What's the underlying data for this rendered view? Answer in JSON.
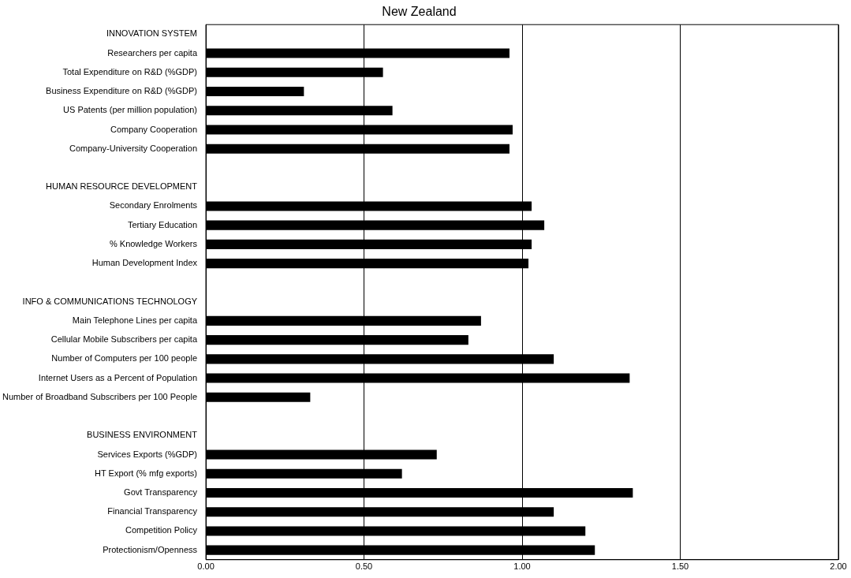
{
  "chart_data": {
    "type": "bar",
    "orientation": "horizontal",
    "title": "New Zealand",
    "categories": [
      "INNOVATION SYSTEM",
      "Researchers per capita",
      "Total Expenditure on R&D (%GDP)",
      "Business Expenditure on R&D (%GDP)",
      "US Patents (per million population)",
      "Company Cooperation",
      "Company-University Cooperation",
      null,
      "HUMAN RESOURCE DEVELOPMENT",
      "Secondary Enrolments",
      "Tertiary Education",
      "% Knowledge Workers",
      "Human Development Index",
      null,
      "INFO & COMMUNICATIONS TECHNOLOGY",
      "Main Telephone Lines per capita",
      "Cellular Mobile Subscribers per capita",
      "Number of Computers per 100 people",
      "Internet Users as a Percent of Population",
      "Number of Broadband Subscribers per 100 People",
      null,
      "BUSINESS ENVIRONMENT",
      "Services Exports (%GDP)",
      "HT Export (% mfg exports)",
      "Govt Transparency",
      "Financial Transparency",
      "Competition Policy",
      "Protectionism/Openness"
    ],
    "values": [
      null,
      0.96,
      0.56,
      0.31,
      0.59,
      0.97,
      0.96,
      null,
      null,
      1.03,
      1.07,
      1.03,
      1.02,
      null,
      null,
      0.87,
      0.83,
      1.1,
      1.34,
      0.33,
      null,
      null,
      0.73,
      0.62,
      1.35,
      1.1,
      1.2,
      1.23
    ],
    "color": "#000000",
    "xlim": [
      0,
      2
    ],
    "xticks": [
      {
        "value": 0,
        "label": "0.00"
      },
      {
        "value": 0.5,
        "label": "0.50"
      },
      {
        "value": 1,
        "label": "1.00"
      },
      {
        "value": 1.5,
        "label": "1.50"
      },
      {
        "value": 2,
        "label": "2.00"
      }
    ],
    "grid": "x",
    "legend": false
  }
}
